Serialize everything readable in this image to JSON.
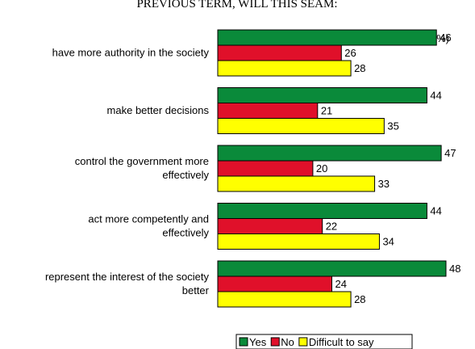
{
  "chart_data": {
    "type": "bar",
    "orientation": "horizontal",
    "title": "PREVIOUS TERM, WILL THIS SEAM:",
    "unit_label": "(%)",
    "categories": [
      [
        "have more authority in the society"
      ],
      [
        "make better decisions"
      ],
      [
        "control the government more",
        "effectively"
      ],
      [
        "act more competently and",
        "effectively"
      ],
      [
        "represent the interest of the society",
        "better"
      ]
    ],
    "series": [
      {
        "name": "Yes",
        "color": "#0a8a3a",
        "values": [
          46,
          44,
          47,
          44,
          48
        ]
      },
      {
        "name": "No",
        "color": "#e0102a",
        "values": [
          26,
          21,
          20,
          22,
          24
        ]
      },
      {
        "name": "Difficult to say",
        "color": "#ffff00",
        "values": [
          28,
          35,
          33,
          34,
          28
        ]
      }
    ],
    "xlim": [
      0,
      48
    ],
    "grid": false,
    "legend_position": "bottom-center"
  }
}
